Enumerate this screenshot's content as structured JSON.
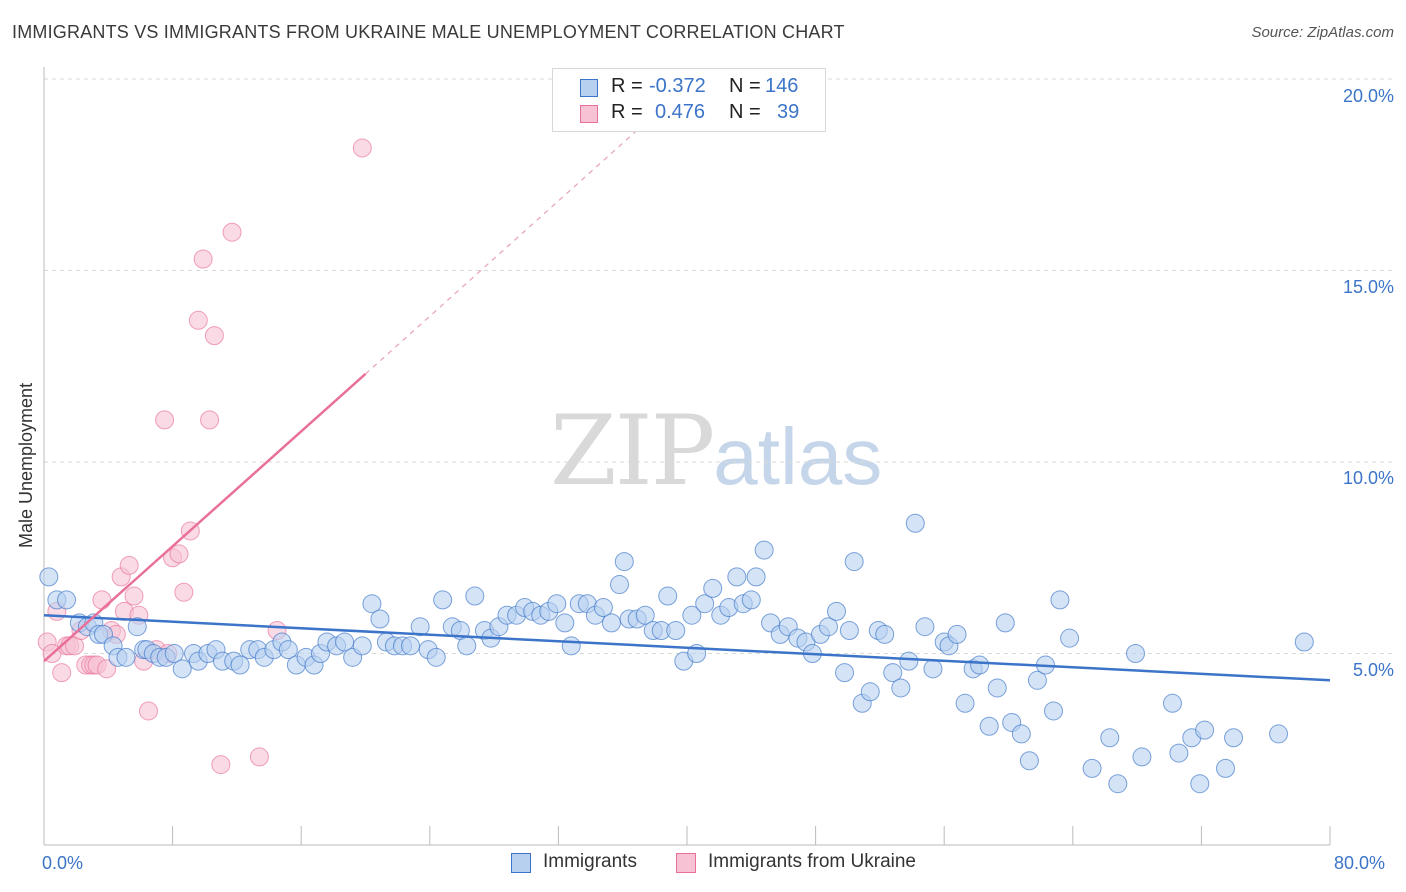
{
  "title": "IMMIGRANTS VS IMMIGRANTS FROM UKRAINE MALE UNEMPLOYMENT CORRELATION CHART",
  "source": "Source: ZipAtlas.com",
  "watermark": {
    "zip": "ZIP",
    "atlas": "atlas"
  },
  "colors": {
    "blue": "#3b74c8",
    "blue_fill": "#b8d0f0",
    "pink": "#e8709a",
    "pink_fill": "#f7c3d4",
    "grid": "#d9d9d9"
  },
  "correlation_legend": [
    {
      "r_label": "R =",
      "r_value": "-0.372",
      "n_label": "N =",
      "n_value": "146"
    },
    {
      "r_label": "R =",
      "r_value": "0.476",
      "n_label": "N =",
      "n_value": "39"
    }
  ],
  "legend": [
    "Immigrants",
    "Immigrants from Ukraine"
  ],
  "chart_data": {
    "type": "scatter",
    "title": "IMMIGRANTS VS IMMIGRANTS FROM UKRAINE MALE UNEMPLOYMENT CORRELATION CHART",
    "xlabel": "",
    "ylabel": "Male Unemployment",
    "xlim": [
      0,
      80
    ],
    "ylim": [
      0,
      20
    ],
    "y_ticks": [
      "5.0%",
      "10.0%",
      "15.0%",
      "20.0%"
    ],
    "x_tick_labels": [
      "0.0%",
      "80.0%"
    ],
    "grid": "horizontal dashed",
    "legend_position": "bottom-center",
    "series": [
      {
        "name": "Immigrants",
        "color": "#3b74c8",
        "r": -0.372,
        "n": 146,
        "trend": {
          "x": [
            0,
            80
          ],
          "y": [
            6.0,
            4.3
          ]
        },
        "points": [
          [
            0.3,
            7.0
          ],
          [
            0.8,
            6.4
          ],
          [
            1.4,
            6.4
          ],
          [
            2.2,
            5.8
          ],
          [
            2.7,
            5.7
          ],
          [
            3.1,
            5.8
          ],
          [
            3.4,
            5.5
          ],
          [
            3.7,
            5.5
          ],
          [
            4.3,
            5.2
          ],
          [
            4.6,
            4.9
          ],
          [
            5.1,
            4.9
          ],
          [
            5.8,
            5.7
          ],
          [
            6.2,
            5.1
          ],
          [
            6.4,
            5.1
          ],
          [
            6.8,
            5.0
          ],
          [
            7.2,
            4.9
          ],
          [
            7.6,
            4.9
          ],
          [
            8.1,
            5.0
          ],
          [
            8.6,
            4.6
          ],
          [
            9.3,
            5.0
          ],
          [
            9.6,
            4.8
          ],
          [
            10.2,
            5.0
          ],
          [
            10.7,
            5.1
          ],
          [
            11.1,
            4.8
          ],
          [
            11.8,
            4.8
          ],
          [
            12.2,
            4.7
          ],
          [
            12.8,
            5.1
          ],
          [
            13.3,
            5.1
          ],
          [
            13.7,
            4.9
          ],
          [
            14.3,
            5.1
          ],
          [
            14.8,
            5.3
          ],
          [
            15.2,
            5.1
          ],
          [
            15.7,
            4.7
          ],
          [
            16.3,
            4.9
          ],
          [
            16.8,
            4.7
          ],
          [
            17.2,
            5.0
          ],
          [
            17.6,
            5.3
          ],
          [
            18.2,
            5.2
          ],
          [
            18.7,
            5.3
          ],
          [
            19.2,
            4.9
          ],
          [
            19.8,
            5.2
          ],
          [
            20.4,
            6.3
          ],
          [
            20.9,
            5.9
          ],
          [
            21.3,
            5.3
          ],
          [
            21.8,
            5.2
          ],
          [
            22.3,
            5.2
          ],
          [
            22.8,
            5.2
          ],
          [
            23.4,
            5.7
          ],
          [
            23.9,
            5.1
          ],
          [
            24.4,
            4.9
          ],
          [
            24.8,
            6.4
          ],
          [
            25.4,
            5.7
          ],
          [
            25.9,
            5.6
          ],
          [
            26.3,
            5.2
          ],
          [
            26.8,
            6.5
          ],
          [
            27.4,
            5.6
          ],
          [
            27.8,
            5.4
          ],
          [
            28.3,
            5.7
          ],
          [
            28.8,
            6.0
          ],
          [
            29.4,
            6.0
          ],
          [
            29.9,
            6.2
          ],
          [
            30.4,
            6.1
          ],
          [
            30.9,
            6.0
          ],
          [
            31.4,
            6.1
          ],
          [
            31.9,
            6.3
          ],
          [
            32.4,
            5.8
          ],
          [
            32.8,
            5.2
          ],
          [
            33.3,
            6.3
          ],
          [
            33.8,
            6.3
          ],
          [
            34.3,
            6.0
          ],
          [
            34.8,
            6.2
          ],
          [
            35.3,
            5.8
          ],
          [
            35.8,
            6.8
          ],
          [
            36.1,
            7.4
          ],
          [
            36.4,
            5.9
          ],
          [
            36.9,
            5.9
          ],
          [
            37.4,
            6.0
          ],
          [
            37.9,
            5.6
          ],
          [
            38.4,
            5.6
          ],
          [
            38.8,
            6.5
          ],
          [
            39.3,
            5.6
          ],
          [
            39.8,
            4.8
          ],
          [
            40.3,
            6.0
          ],
          [
            40.6,
            5.0
          ],
          [
            41.1,
            6.3
          ],
          [
            41.6,
            6.7
          ],
          [
            42.1,
            6.0
          ],
          [
            42.6,
            6.2
          ],
          [
            43.1,
            7.0
          ],
          [
            43.5,
            6.3
          ],
          [
            44.0,
            6.4
          ],
          [
            44.3,
            7.0
          ],
          [
            44.8,
            7.7
          ],
          [
            45.2,
            5.8
          ],
          [
            45.8,
            5.5
          ],
          [
            46.3,
            5.7
          ],
          [
            46.9,
            5.4
          ],
          [
            47.4,
            5.3
          ],
          [
            47.8,
            5.0
          ],
          [
            48.3,
            5.5
          ],
          [
            48.8,
            5.7
          ],
          [
            49.3,
            6.1
          ],
          [
            49.8,
            4.5
          ],
          [
            50.1,
            5.6
          ],
          [
            50.4,
            7.4
          ],
          [
            50.9,
            3.7
          ],
          [
            51.4,
            4.0
          ],
          [
            51.9,
            5.6
          ],
          [
            52.3,
            5.5
          ],
          [
            52.8,
            4.5
          ],
          [
            53.3,
            4.1
          ],
          [
            53.8,
            4.8
          ],
          [
            54.2,
            8.4
          ],
          [
            54.8,
            5.7
          ],
          [
            55.3,
            4.6
          ],
          [
            56.0,
            5.3
          ],
          [
            56.3,
            5.2
          ],
          [
            56.8,
            5.5
          ],
          [
            57.3,
            3.7
          ],
          [
            57.8,
            4.6
          ],
          [
            58.2,
            4.7
          ],
          [
            58.8,
            3.1
          ],
          [
            59.3,
            4.1
          ],
          [
            59.8,
            5.8
          ],
          [
            60.2,
            3.2
          ],
          [
            60.8,
            2.9
          ],
          [
            61.3,
            2.2
          ],
          [
            61.8,
            4.3
          ],
          [
            62.3,
            4.7
          ],
          [
            62.8,
            3.5
          ],
          [
            63.2,
            6.4
          ],
          [
            63.8,
            5.4
          ],
          [
            65.2,
            2.0
          ],
          [
            66.3,
            2.8
          ],
          [
            66.8,
            1.6
          ],
          [
            67.9,
            5.0
          ],
          [
            68.3,
            2.3
          ],
          [
            70.2,
            3.7
          ],
          [
            70.6,
            2.4
          ],
          [
            71.4,
            2.8
          ],
          [
            71.9,
            1.6
          ],
          [
            72.2,
            3.0
          ],
          [
            73.5,
            2.0
          ],
          [
            74.0,
            2.8
          ],
          [
            76.8,
            2.9
          ],
          [
            78.4,
            5.3
          ]
        ]
      },
      {
        "name": "Immigrants from Ukraine",
        "color": "#e8709a",
        "r": 0.476,
        "n": 39,
        "trend": {
          "x": [
            0,
            20
          ],
          "y": [
            4.8,
            12.3
          ]
        },
        "trend_dashed": {
          "x": [
            20,
            37
          ],
          "y": [
            12.3,
            18.7
          ]
        },
        "points": [
          [
            0.2,
            5.3
          ],
          [
            0.5,
            5.0
          ],
          [
            0.8,
            6.1
          ],
          [
            1.1,
            4.5
          ],
          [
            1.4,
            5.2
          ],
          [
            1.6,
            5.2
          ],
          [
            1.9,
            5.2
          ],
          [
            2.3,
            5.6
          ],
          [
            2.6,
            4.7
          ],
          [
            2.9,
            4.7
          ],
          [
            3.1,
            4.7
          ],
          [
            3.3,
            4.7
          ],
          [
            3.6,
            6.4
          ],
          [
            3.9,
            4.6
          ],
          [
            4.2,
            5.6
          ],
          [
            4.5,
            5.5
          ],
          [
            4.8,
            7.0
          ],
          [
            5.0,
            6.1
          ],
          [
            5.3,
            7.3
          ],
          [
            5.6,
            6.5
          ],
          [
            5.9,
            6.0
          ],
          [
            6.2,
            4.8
          ],
          [
            6.5,
            3.5
          ],
          [
            7.0,
            5.1
          ],
          [
            7.5,
            11.1
          ],
          [
            7.7,
            5.0
          ],
          [
            8.0,
            7.5
          ],
          [
            8.4,
            7.6
          ],
          [
            8.7,
            6.6
          ],
          [
            9.1,
            8.2
          ],
          [
            9.6,
            13.7
          ],
          [
            9.9,
            15.3
          ],
          [
            10.3,
            11.1
          ],
          [
            10.6,
            13.3
          ],
          [
            11.0,
            2.1
          ],
          [
            11.7,
            16.0
          ],
          [
            13.4,
            2.3
          ],
          [
            14.5,
            5.6
          ],
          [
            19.8,
            18.2
          ]
        ]
      }
    ]
  }
}
